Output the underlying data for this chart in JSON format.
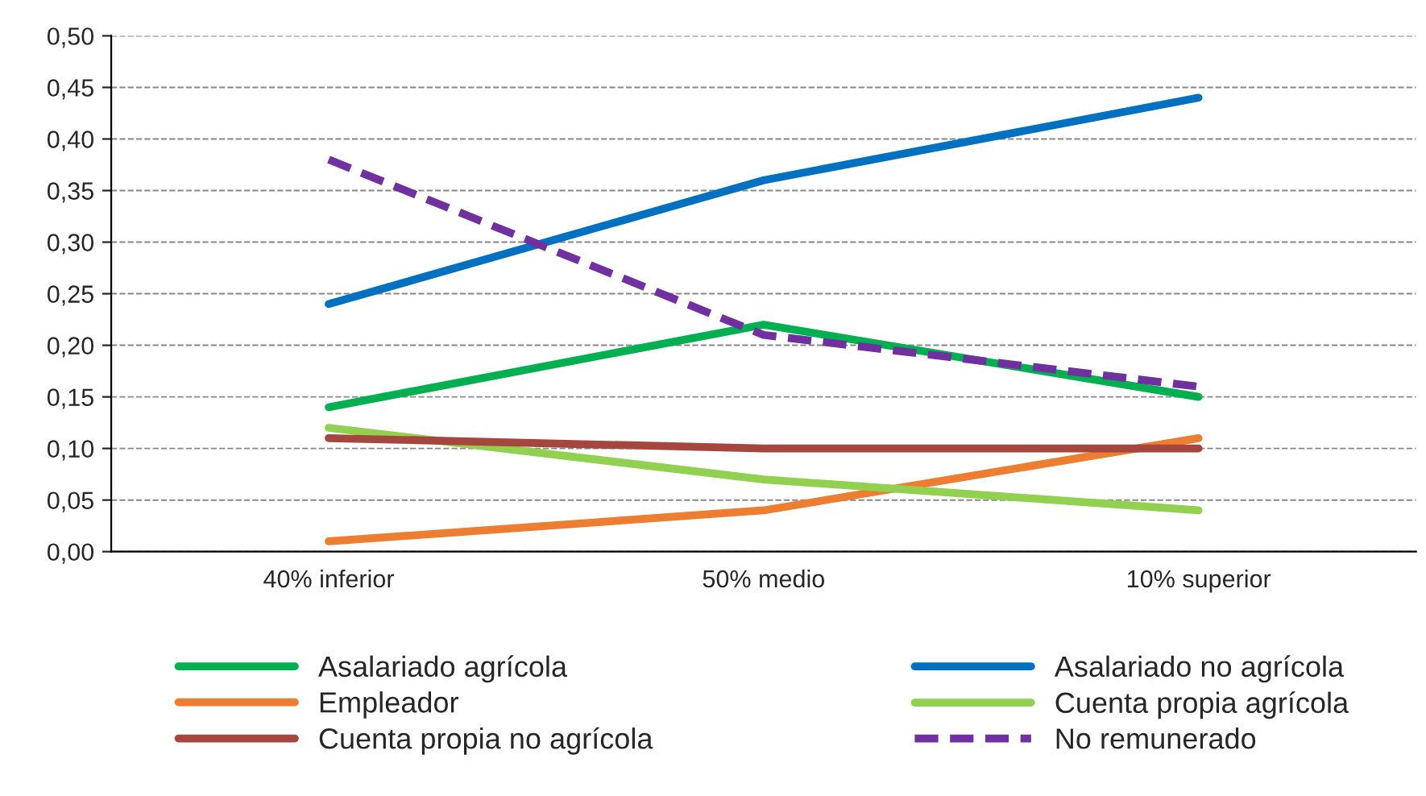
{
  "chart_data": {
    "type": "line",
    "categories": [
      "40% inferior",
      "50% medio",
      "10% superior"
    ],
    "series": [
      {
        "name": "Asalariado agrícola",
        "color": "#00b050",
        "values": [
          0.14,
          0.22,
          0.15
        ]
      },
      {
        "name": "Asalariado no agrícola",
        "color": "#0070c0",
        "values": [
          0.24,
          0.36,
          0.44
        ]
      },
      {
        "name": "Empleador",
        "color": "#ed7d31",
        "values": [
          0.01,
          0.04,
          0.11
        ]
      },
      {
        "name": "Cuenta propia agrícola",
        "color": "#92d050",
        "values": [
          0.12,
          0.07,
          0.04
        ]
      },
      {
        "name": "Cuenta propia no agrícola",
        "color": "#a5463f",
        "values": [
          0.11,
          0.1,
          0.1
        ]
      },
      {
        "name": "No remunerado",
        "color": "#7030a0",
        "values": [
          0.38,
          0.21,
          0.16
        ],
        "line_style": "dashed"
      }
    ],
    "ylim": [
      0,
      0.5
    ],
    "yticks": [
      {
        "value": 0,
        "label": "0,00"
      },
      {
        "value": 0.05,
        "label": "0,05"
      },
      {
        "value": 0.1,
        "label": "0,10"
      },
      {
        "value": 0.15,
        "label": "0,15"
      },
      {
        "value": 0.2,
        "label": "0,20"
      },
      {
        "value": 0.25,
        "label": "0,25"
      },
      {
        "value": 0.3,
        "label": "0,30"
      },
      {
        "value": 0.35,
        "label": "0,35"
      },
      {
        "value": 0.4,
        "label": "0,40"
      },
      {
        "value": 0.45,
        "label": "0,45"
      },
      {
        "value": 0.5,
        "label": "0,50"
      }
    ],
    "grid": "y",
    "legend": "bottom",
    "marker": "none",
    "line_style": "solid"
  }
}
